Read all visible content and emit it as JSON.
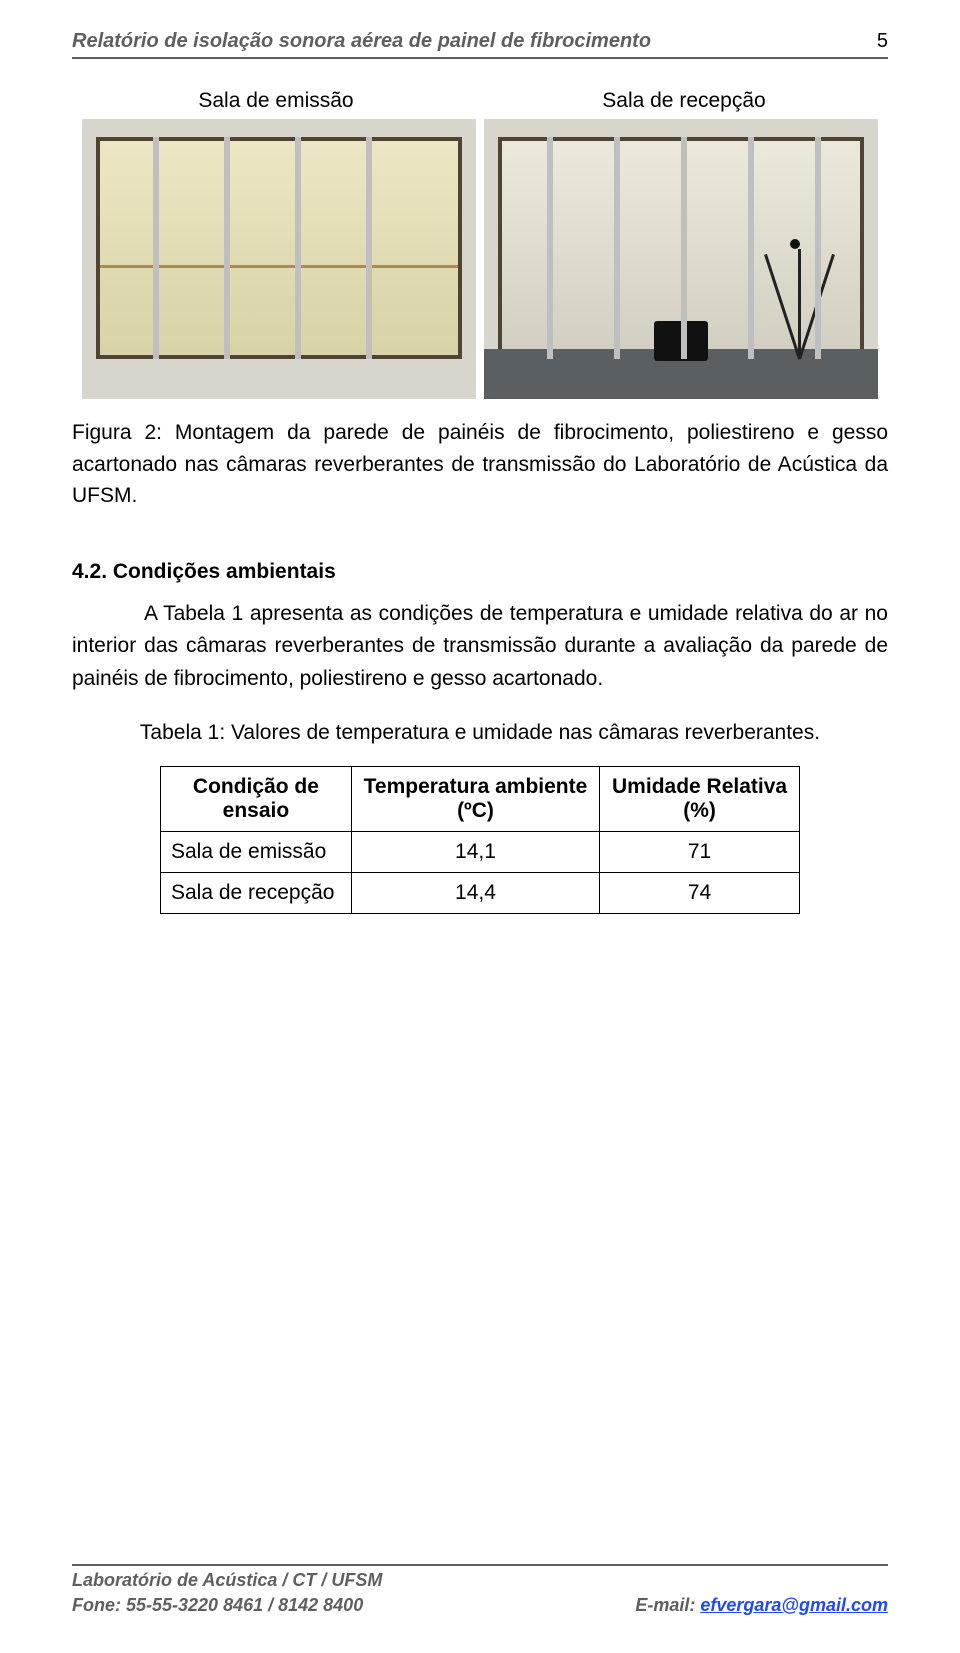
{
  "header": {
    "title": "Relatório de isolação sonora aérea de painel de fibrocimento",
    "page_number": "5"
  },
  "figure": {
    "label_left": "Sala de emissão",
    "label_right": "Sala de recepção",
    "caption": "Figura 2: Montagem da parede de painéis de fibrocimento, poliestireno e gesso acartonado nas câmaras reverberantes de transmissão do Laboratório de Acústica da UFSM.",
    "left_stud_positions_pct": [
      18,
      36,
      54,
      72
    ],
    "right_stud_positions_pct": [
      16,
      33,
      50,
      67,
      84
    ]
  },
  "section": {
    "heading": "4.2. Condições ambientais",
    "body": "A Tabela 1 apresenta as condições de temperatura e umidade relativa do ar no interior das câmaras reverberantes de transmissão durante a avaliação da parede de painéis de fibrocimento, poliestireno e gesso acartonado."
  },
  "table": {
    "caption": "Tabela 1: Valores de temperatura e umidade nas câmaras reverberantes.",
    "columns": [
      "Condição de ensaio",
      "Temperatura ambiente (ºC)",
      "Umidade Relativa (%)"
    ],
    "rows": [
      [
        "Sala de emissão",
        "14,1",
        "71"
      ],
      [
        "Sala de recepção",
        "14,4",
        "74"
      ]
    ]
  },
  "footer": {
    "line1": "Laboratório de Acústica / CT / UFSM",
    "line2": "Fone: 55-55-3220 8461 / 8142 8400",
    "email_label": "E-mail: ",
    "email": "efvergara@gmail.com"
  }
}
